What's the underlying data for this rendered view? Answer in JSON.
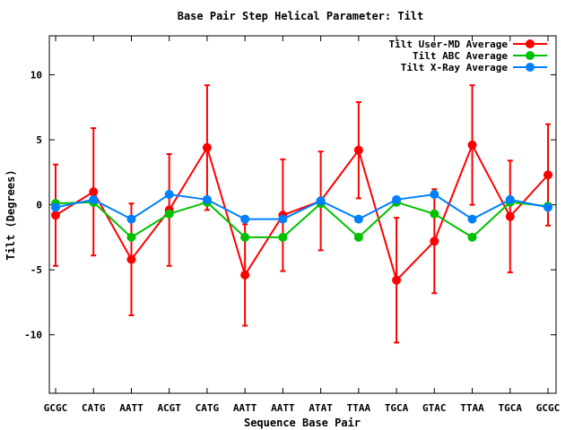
{
  "chart_data": {
    "type": "line",
    "title": "Base Pair Step Helical Parameter: Tilt",
    "xlabel": "Sequence Base Pair",
    "ylabel": "Tilt (Degrees)",
    "categories": [
      "GCGC",
      "CATG",
      "AATT",
      "ACGT",
      "CATG",
      "AATT",
      "AATT",
      "ATAT",
      "TTAA",
      "TGCA",
      "GTAC",
      "TTAA",
      "TGCA",
      "GCGC"
    ],
    "ylim": [
      -14.5,
      13
    ],
    "yticks": [
      -10,
      -5,
      0,
      5,
      10
    ],
    "grid": false,
    "legend_position": "top-right",
    "series": [
      {
        "name": "Tilt User-MD Average",
        "color": "#ff0000",
        "values": [
          -0.8,
          1.0,
          -4.2,
          -0.4,
          4.4,
          -5.4,
          -0.8,
          0.3,
          4.2,
          -5.8,
          -2.8,
          4.6,
          -0.9,
          2.3
        ],
        "errors": [
          3.9,
          4.9,
          4.3,
          4.3,
          4.8,
          3.9,
          4.3,
          3.8,
          3.7,
          4.8,
          4.0,
          4.6,
          4.3,
          3.9
        ]
      },
      {
        "name": "Tilt ABC Average",
        "color": "#00c000",
        "values": [
          0.1,
          0.2,
          -2.5,
          -0.7,
          0.2,
          -2.5,
          -2.5,
          0.1,
          -2.5,
          0.2,
          -0.7,
          -2.5,
          0.2,
          -0.1
        ]
      },
      {
        "name": "Tilt X-Ray Average",
        "color": "#0080ff",
        "values": [
          -0.2,
          0.4,
          -1.1,
          0.8,
          0.4,
          -1.1,
          -1.1,
          0.3,
          -1.1,
          0.4,
          0.8,
          -1.1,
          0.4,
          -0.2
        ]
      }
    ]
  }
}
